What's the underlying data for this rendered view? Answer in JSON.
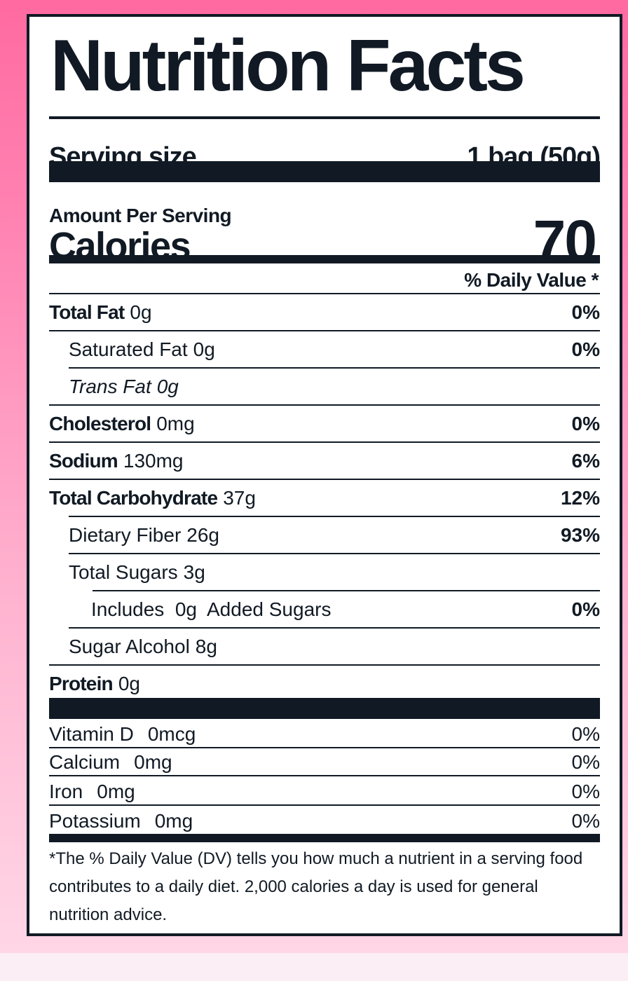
{
  "title": "Nutrition Facts",
  "serving": {
    "label": "Serving size",
    "value": "1 bag (50g)"
  },
  "amount_per_serving": "Amount Per Serving",
  "calories": {
    "label": "Calories",
    "value": "70"
  },
  "dv_header": "% Daily Value *",
  "nutrients": [
    {
      "name": "Total Fat",
      "amount": "0g",
      "dv": "0%"
    },
    {
      "name": "Saturated Fat",
      "amount": "0g",
      "dv": "0%"
    },
    {
      "name": "Trans Fat",
      "amount": "0g",
      "dv": ""
    },
    {
      "name": "Cholesterol",
      "amount": "0mg",
      "dv": "0%"
    },
    {
      "name": "Sodium",
      "amount": "130mg",
      "dv": "6%"
    },
    {
      "name": "Total Carbohydrate",
      "amount": "37g",
      "dv": "12%"
    },
    {
      "name": "Dietary Fiber",
      "amount": "26g",
      "dv": "93%"
    },
    {
      "name": "Total Sugars",
      "amount": "3g",
      "dv": ""
    },
    {
      "name": "Includes  0g  Added Sugars",
      "amount": "",
      "dv": "0%"
    },
    {
      "name": "Sugar Alcohol",
      "amount": "8g",
      "dv": ""
    },
    {
      "name": "Protein",
      "amount": "0g",
      "dv": ""
    }
  ],
  "vitamins": [
    {
      "name": "Vitamin D",
      "amount": "0mcg",
      "dv": "0%"
    },
    {
      "name": "Calcium",
      "amount": "0mg",
      "dv": "0%"
    },
    {
      "name": "Iron",
      "amount": "0mg",
      "dv": "0%"
    },
    {
      "name": "Potassium",
      "amount": "0mg",
      "dv": "0%"
    }
  ],
  "footnote": "*The % Daily Value (DV) tells you how much a nutrient in a serving food contributes to a daily diet. 2,000 calories a day is used for general nutrition advice.",
  "colors": {
    "ink": "#111a24",
    "background_top": "#ff6aa0",
    "background_bottom": "#ffd9e8"
  }
}
